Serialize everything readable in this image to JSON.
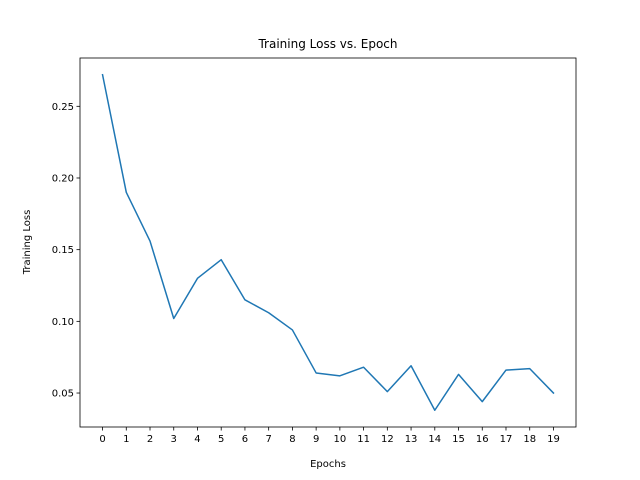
{
  "chart_data": {
    "type": "line",
    "title": "Training Loss vs. Epoch",
    "xlabel": "Epochs",
    "ylabel": "Training Loss",
    "x": [
      0,
      1,
      2,
      3,
      4,
      5,
      6,
      7,
      8,
      9,
      10,
      11,
      12,
      13,
      14,
      15,
      16,
      17,
      18,
      19
    ],
    "series": [
      {
        "values": [
          0.272,
          0.19,
          0.156,
          0.102,
          0.13,
          0.143,
          0.115,
          0.106,
          0.094,
          0.064,
          0.062,
          0.068,
          0.051,
          0.069,
          0.038,
          0.063,
          0.044,
          0.066,
          0.067,
          0.05
        ],
        "color": "#1f77b4"
      }
    ],
    "xticks": [
      0,
      1,
      2,
      3,
      4,
      5,
      6,
      7,
      8,
      9,
      10,
      11,
      12,
      13,
      14,
      15,
      16,
      17,
      18,
      19
    ],
    "yticks": [
      0.05,
      0.1,
      0.15,
      0.2,
      0.25
    ],
    "ytick_labels": [
      "0.05",
      "0.10",
      "0.15",
      "0.20",
      "0.25"
    ],
    "xlim": [
      -0.95,
      19.95
    ],
    "ylim": [
      0.0263,
      0.2837
    ],
    "grid": false,
    "legend": "none"
  }
}
